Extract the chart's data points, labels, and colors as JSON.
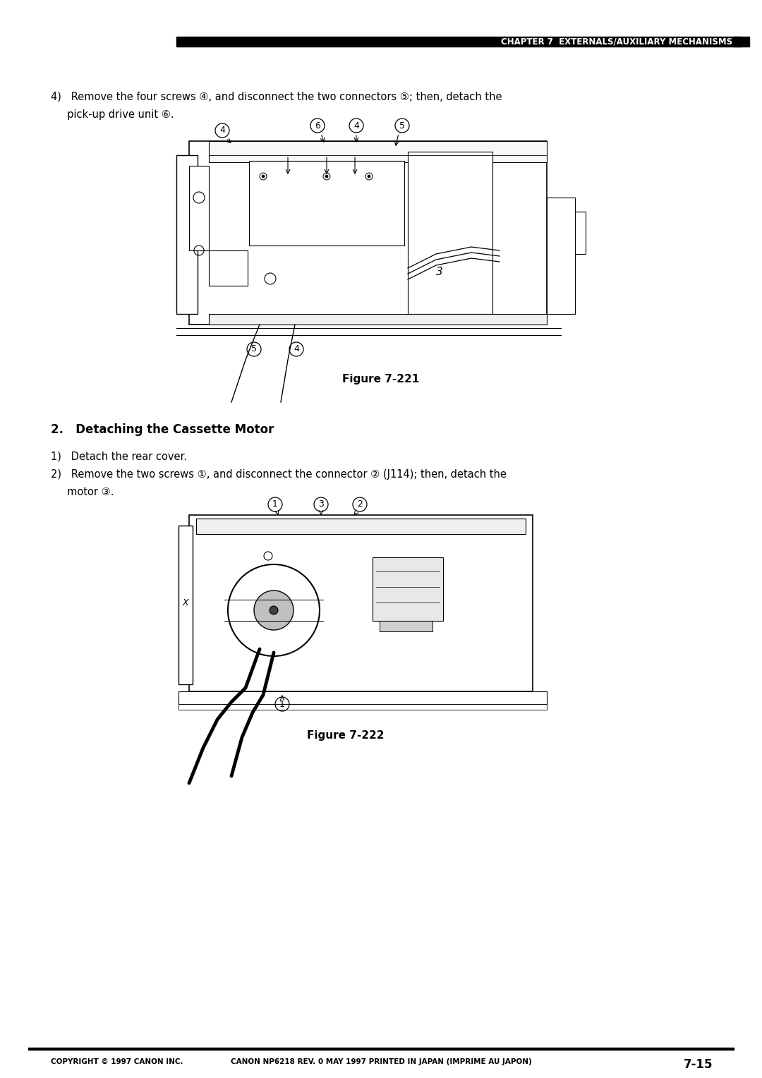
{
  "page_width": 10.8,
  "page_height": 15.28,
  "dpi": 100,
  "bg_color": "#ffffff",
  "header_bar_color": "#000000",
  "header_text": "CHAPTER 7  EXTERNALS/AUXILIARY MECHANISMS",
  "section_title": "2.   Detaching the Cassette Motor",
  "step4_line1": "4)   Remove the four screws ④, and disconnect the two connectors ⑤; then, detach the",
  "step4_line2": "     pick-up drive unit ⑥.",
  "step1_text": "1)   Detach the rear cover.",
  "step2_line1": "2)   Remove the two screws ①, and disconnect the connector ② (J114); then, detach the",
  "step2_line2": "     motor ③.",
  "fig221_label": "Figure 7-221",
  "fig222_label": "Figure 7-222",
  "footer_left": "COPYRIGHT © 1997 CANON INC.",
  "footer_center": "CANON NP6218 REV. 0 MAY 1997 PRINTED IN JAPAN (IMPRIME AU JAPON)",
  "footer_right": "7-15"
}
